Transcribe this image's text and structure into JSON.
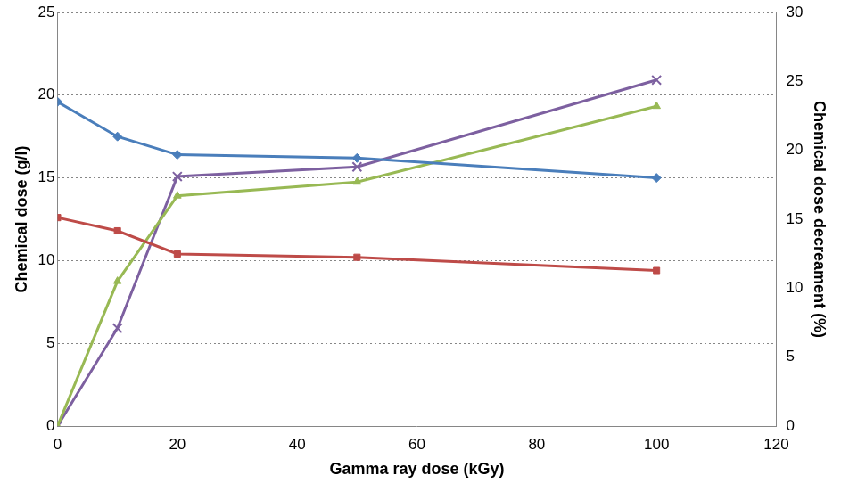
{
  "chart_data": {
    "type": "line",
    "x_label": "Gamma ray dose (kGy)",
    "y_label": "Chemical dose (g/l)",
    "y2_label": "Chemical dose decreament (%)",
    "x": [
      0,
      10,
      20,
      50,
      100
    ],
    "xlim": [
      0,
      120
    ],
    "xticks": [
      0,
      20,
      40,
      60,
      80,
      100,
      120
    ],
    "ylim": [
      0,
      25
    ],
    "yticks": [
      0,
      5,
      10,
      15,
      20,
      25
    ],
    "y2lim": [
      0,
      30
    ],
    "y2ticks": [
      0,
      5,
      10,
      15,
      20,
      25,
      30
    ],
    "grid": true,
    "series": [
      {
        "color": "#4a7ebb",
        "marker": "diamond",
        "values": [
          19.6,
          17.5,
          16.4,
          16.2,
          15.0
        ]
      },
      {
        "color": "#be4b48",
        "marker": "square",
        "values": [
          12.6,
          11.8,
          10.4,
          10.2,
          9.4
        ]
      },
      {
        "color": "#98b954",
        "marker": "triangle",
        "axis": "y2",
        "values": [
          0,
          10.5,
          16.7,
          17.7,
          23.2
        ]
      },
      {
        "color": "#7d60a0",
        "marker": "x",
        "axis": "y2",
        "values": [
          0,
          7.1,
          18.1,
          18.8,
          25.1
        ]
      }
    ]
  }
}
